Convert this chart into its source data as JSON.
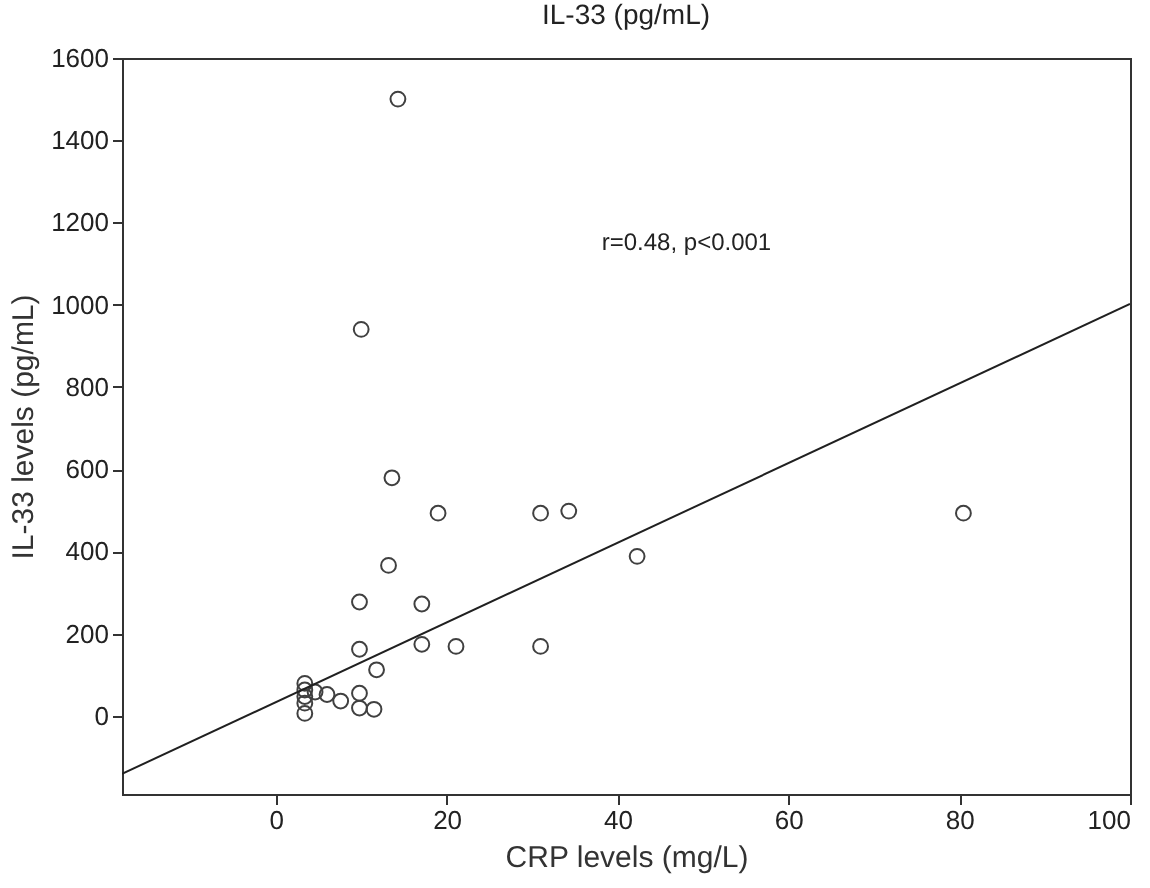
{
  "chart_data": {
    "type": "scatter",
    "title": "IL-33 (pg/mL)",
    "xlabel": "CRP levels (mg/L)",
    "ylabel": "IL-33 levels (pg/mL)",
    "annotations": [
      "r=0.48, p<0.001"
    ],
    "xlim": [
      -18,
      100
    ],
    "ylim": [
      -190,
      1600
    ],
    "xticks": [
      0,
      20,
      40,
      60,
      80,
      100
    ],
    "yticks": [
      0,
      200,
      400,
      600,
      800,
      1000,
      1200,
      1400,
      1600
    ],
    "grid": false,
    "series": [
      {
        "marker": "circle",
        "color": "#404040",
        "x": [
          14.3,
          10,
          13.6,
          19,
          31,
          34.3,
          42.3,
          80.5,
          13.2,
          9.8,
          17.1,
          9.8,
          17.1,
          21.1,
          31,
          11.8,
          3.4,
          3.4,
          3.4,
          3.4,
          3.4,
          4.6,
          6,
          7.6,
          9.8,
          9.8,
          11.5
        ],
        "values": [
          1500,
          940,
          579,
          493,
          493,
          498,
          388,
          493,
          366,
          277,
          272,
          162,
          174,
          169,
          169,
          112,
          79,
          63,
          47,
          31,
          6,
          58,
          52,
          36,
          55,
          19,
          16
        ]
      },
      {
        "type": "line",
        "color": "#202020",
        "x": [
          -18,
          100
        ],
        "values": [
          -141,
          1002
        ]
      }
    ]
  }
}
